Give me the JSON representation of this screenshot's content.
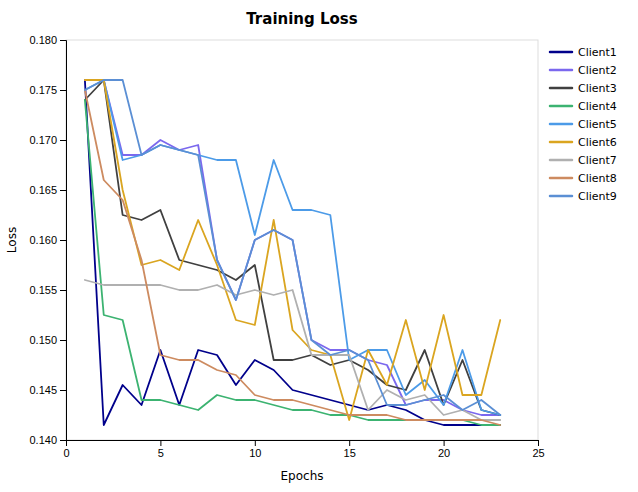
{
  "chart_data": {
    "type": "line",
    "title": "Training Loss",
    "x_label": "Epochs",
    "y_label": "Loss",
    "x": [
      1,
      2,
      3,
      4,
      5,
      6,
      7,
      8,
      9,
      10,
      11,
      12,
      13,
      14,
      15,
      16,
      17,
      18,
      19,
      20,
      21,
      22,
      23
    ],
    "series": [
      {
        "name": "Client1",
        "color": "#00008B",
        "values": [
          0.176,
          0.1415,
          0.1455,
          0.1435,
          0.149,
          0.1435,
          0.149,
          0.1485,
          0.1455,
          0.148,
          0.147,
          0.145,
          0.1445,
          0.144,
          0.1435,
          0.143,
          0.1435,
          0.143,
          0.142,
          0.1415,
          0.1415,
          0.1415,
          0.1415
        ]
      },
      {
        "name": "Client2",
        "color": "#7B68EE",
        "values": [
          0.176,
          0.176,
          0.1685,
          0.1685,
          0.17,
          0.169,
          0.1695,
          0.158,
          0.154,
          0.16,
          0.161,
          0.16,
          0.15,
          0.149,
          0.149,
          0.148,
          0.1475,
          0.1435,
          0.144,
          0.144,
          0.143,
          0.1425,
          0.1425
        ]
      },
      {
        "name": "Client3",
        "color": "#404040",
        "values": [
          0.174,
          0.176,
          0.1625,
          0.162,
          0.163,
          0.158,
          0.1575,
          0.157,
          0.156,
          0.1575,
          0.148,
          0.148,
          0.1485,
          0.1475,
          0.148,
          0.147,
          0.1455,
          0.145,
          0.149,
          0.1435,
          0.148,
          0.143,
          0.1425
        ]
      },
      {
        "name": "Client4",
        "color": "#3CB371",
        "values": [
          0.174,
          0.1525,
          0.152,
          0.144,
          0.144,
          0.1435,
          0.143,
          0.1445,
          0.144,
          0.144,
          0.1435,
          0.143,
          0.143,
          0.1425,
          0.1425,
          0.142,
          0.142,
          0.142,
          0.142,
          0.142,
          0.142,
          0.1415,
          0.1415
        ]
      },
      {
        "name": "Client5",
        "color": "#4C9BE8",
        "values": [
          0.175,
          0.176,
          0.168,
          0.1685,
          0.1695,
          0.169,
          0.1685,
          0.168,
          0.168,
          0.1605,
          0.168,
          0.163,
          0.163,
          0.1625,
          0.148,
          0.149,
          0.149,
          0.1445,
          0.146,
          0.1435,
          0.149,
          0.143,
          0.1425
        ]
      },
      {
        "name": "Client6",
        "color": "#DAA520",
        "values": [
          0.176,
          0.176,
          0.165,
          0.1575,
          0.158,
          0.157,
          0.162,
          0.1575,
          0.152,
          0.1515,
          0.162,
          0.151,
          0.149,
          0.1485,
          0.142,
          0.149,
          0.1455,
          0.152,
          0.145,
          0.1525,
          0.1445,
          0.1445,
          0.152
        ]
      },
      {
        "name": "Client7",
        "color": "#B0B0B0",
        "values": [
          0.156,
          0.1555,
          0.1555,
          0.1555,
          0.1555,
          0.155,
          0.155,
          0.1555,
          0.1545,
          0.155,
          0.1545,
          0.155,
          0.1485,
          0.1485,
          0.1485,
          0.143,
          0.145,
          0.144,
          0.1445,
          0.1425,
          0.143,
          0.142,
          0.142
        ]
      },
      {
        "name": "Client8",
        "color": "#CD8B60",
        "values": [
          0.175,
          0.166,
          0.164,
          0.158,
          0.1485,
          0.148,
          0.148,
          0.147,
          0.1465,
          0.1445,
          0.144,
          0.144,
          0.1435,
          0.143,
          0.1425,
          0.1425,
          0.1425,
          0.142,
          0.142,
          0.142,
          0.142,
          0.142,
          0.1415
        ]
      },
      {
        "name": "Client9",
        "color": "#5B8FD4",
        "values": [
          0.175,
          0.176,
          0.176,
          0.1685,
          0.1695,
          0.169,
          0.1685,
          0.158,
          0.154,
          0.16,
          0.161,
          0.16,
          0.15,
          0.1485,
          0.149,
          0.148,
          0.1435,
          0.1435,
          0.144,
          0.1445,
          0.143,
          0.144,
          0.1425
        ]
      }
    ],
    "xlim": [
      0,
      25
    ],
    "xticks": [
      0,
      5,
      10,
      15,
      20,
      25
    ],
    "ylim": [
      0.14,
      0.18
    ],
    "yticks": [
      {
        "value": 0.14,
        "label": "0.140"
      },
      0.145,
      {
        "value": 0.15,
        "label": "0.150"
      },
      0.155,
      {
        "value": 0.16,
        "label": "0.160"
      },
      0.165,
      {
        "value": 0.17,
        "label": "0.170"
      },
      0.175,
      {
        "value": 0.18,
        "label": "0.180"
      }
    ],
    "grid": false,
    "legend": "upper right"
  }
}
